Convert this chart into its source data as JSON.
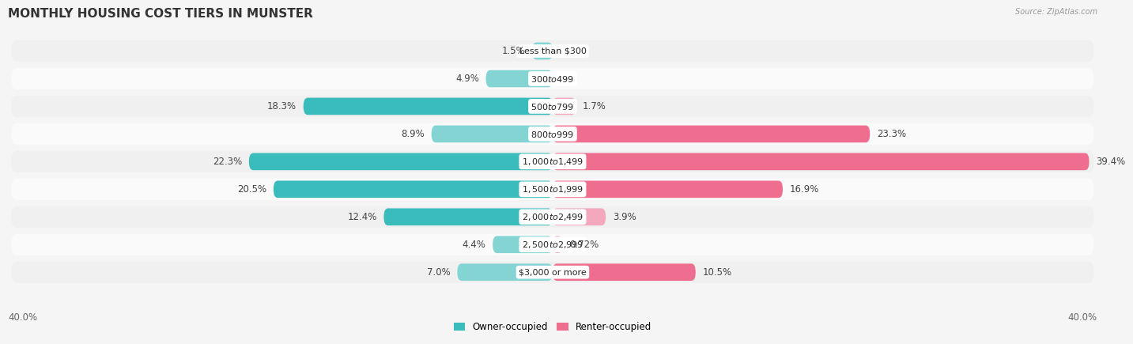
{
  "title": "MONTHLY HOUSING COST TIERS IN MUNSTER",
  "source": "Source: ZipAtlas.com",
  "categories": [
    "Less than $300",
    "$300 to $499",
    "$500 to $799",
    "$800 to $999",
    "$1,000 to $1,499",
    "$1,500 to $1,999",
    "$2,000 to $2,499",
    "$2,500 to $2,999",
    "$3,000 or more"
  ],
  "owner_values": [
    1.5,
    4.9,
    18.3,
    8.9,
    22.3,
    20.5,
    12.4,
    4.4,
    7.0
  ],
  "renter_values": [
    0.0,
    0.0,
    1.7,
    23.3,
    39.4,
    16.9,
    3.9,
    0.72,
    10.5
  ],
  "owner_color_dark": "#3BBCBC",
  "owner_color_light": "#85D4D4",
  "renter_color_dark": "#EF6E90",
  "renter_color_light": "#F4A8BE",
  "row_color_odd": "#F0F0F0",
  "row_color_even": "#FAFAFA",
  "bg_color": "#F5F5F5",
  "max_val": 40.0,
  "label_threshold": 10.0,
  "title_fontsize": 11,
  "label_fontsize": 8.5,
  "category_fontsize": 8,
  "legend_fontsize": 8.5,
  "source_fontsize": 7
}
